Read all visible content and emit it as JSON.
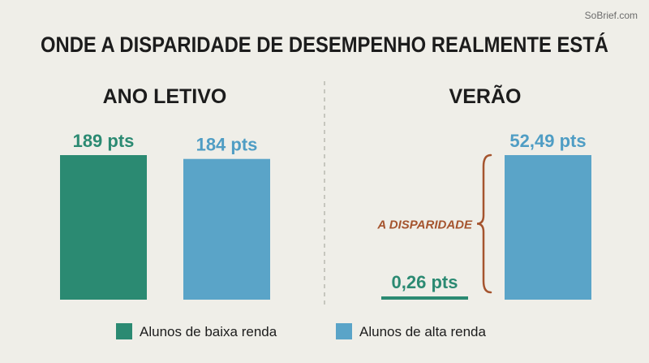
{
  "watermark": "SoBrief.com",
  "title": "ONDE A DISPARIDADE DE DESEMPENHO REALMENTE ESTÁ",
  "colors": {
    "low_income": "#2b8a72",
    "high_income": "#5aa4c8",
    "low_income_label": "#2b8a72",
    "high_income_label": "#4f9dc4",
    "annotation": "#a5542e",
    "background": "#efeee8",
    "divider": "#b8b8b0"
  },
  "chart_data": [
    {
      "type": "bar",
      "title": "ANO LETIVO",
      "categories": [
        "Alunos de baixa renda",
        "Alunos de alta renda"
      ],
      "values": [
        189,
        184
      ],
      "labels": [
        "189 pts",
        "184 pts"
      ],
      "ylim": [
        0,
        189
      ],
      "grid": false
    },
    {
      "type": "bar",
      "title": "VERÃO",
      "categories": [
        "Alunos de baixa renda",
        "Alunos de alta renda"
      ],
      "values": [
        0.26,
        52.49
      ],
      "labels": [
        "0,26 pts",
        "52,49 pts"
      ],
      "ylim": [
        0,
        52.49
      ],
      "grid": false,
      "annotation": "A DISPARIDADE"
    }
  ],
  "legend": {
    "position": "bottom",
    "items": [
      {
        "label": "Alunos de baixa renda",
        "color": "#2b8a72"
      },
      {
        "label": "Alunos de alta renda",
        "color": "#5aa4c8"
      }
    ]
  }
}
